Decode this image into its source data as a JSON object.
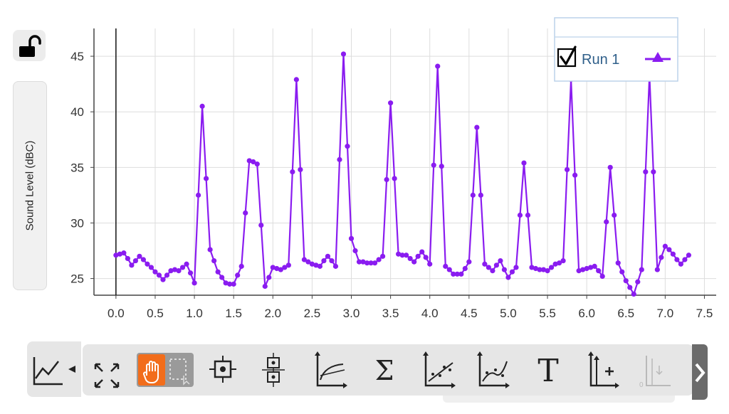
{
  "left_panel": {
    "lock_icon": "unlock-icon",
    "y_axis_label": "Sound Level (dBC)"
  },
  "legend": {
    "header": "",
    "run_label": "Run 1",
    "checked": true,
    "marker_icon": "triangle-marker-icon",
    "series_color": "#8a1cf0"
  },
  "toolbar": {
    "graph_options_icon": "graph-options-icon",
    "expand_icon": "expand-icon",
    "pan_icon": "hand-pan-icon",
    "select_icon": "selection-icon",
    "examine_icon": "examine-crosshair-icon",
    "interpolate_icon": "interpolate-icon",
    "tangent_icon": "tangent-icon",
    "statistics_label": "Σ",
    "linear_fit_icon": "linear-fit-icon",
    "curve_fit_icon": "curve-fit-icon",
    "annotation_label": "T",
    "add_axis_icon": "add-axis-icon",
    "disabled_axis_icon": "axis-zero-icon",
    "next_icon": "chevron-right-icon",
    "pan_active_color": "#f26d1b"
  },
  "chart_data": {
    "type": "line",
    "title": "",
    "xlabel": "",
    "ylabel": "Sound Level (dBC)",
    "xlim": [
      -0.28,
      7.65
    ],
    "ylim": [
      23.5,
      47.5
    ],
    "xticks": [
      "0.0",
      "0.5",
      "1.0",
      "1.5",
      "2.0",
      "2.5",
      "3.0",
      "3.5",
      "4.0",
      "4.5",
      "5.0",
      "5.5",
      "6.0",
      "6.5",
      "7.0",
      "7.5"
    ],
    "yticks": [
      "25",
      "30",
      "35",
      "40",
      "45"
    ],
    "grid": true,
    "legend_position": "top-right",
    "series": [
      {
        "name": "Run 1",
        "color": "#8a1cf0",
        "x": [
          0.0,
          0.05,
          0.1,
          0.15,
          0.2,
          0.25,
          0.3,
          0.35,
          0.4,
          0.45,
          0.5,
          0.55,
          0.6,
          0.65,
          0.7,
          0.75,
          0.8,
          0.85,
          0.9,
          0.95,
          1.0,
          1.05,
          1.1,
          1.15,
          1.2,
          1.25,
          1.3,
          1.35,
          1.4,
          1.45,
          1.5,
          1.55,
          1.6,
          1.65,
          1.7,
          1.75,
          1.8,
          1.85,
          1.9,
          1.95,
          2.0,
          2.05,
          2.1,
          2.15,
          2.2,
          2.25,
          2.3,
          2.35,
          2.4,
          2.45,
          2.5,
          2.55,
          2.6,
          2.65,
          2.7,
          2.75,
          2.8,
          2.85,
          2.9,
          2.95,
          3.0,
          3.05,
          3.1,
          3.15,
          3.2,
          3.25,
          3.3,
          3.35,
          3.4,
          3.45,
          3.5,
          3.55,
          3.6,
          3.65,
          3.7,
          3.75,
          3.8,
          3.85,
          3.9,
          3.95,
          4.0,
          4.05,
          4.1,
          4.15,
          4.2,
          4.25,
          4.3,
          4.35,
          4.4,
          4.45,
          4.5,
          4.55,
          4.6,
          4.65,
          4.7,
          4.75,
          4.8,
          4.85,
          4.9,
          4.95,
          5.0,
          5.05,
          5.1,
          5.15,
          5.2,
          5.25,
          5.3,
          5.35,
          5.4,
          5.45,
          5.5,
          5.55,
          5.6,
          5.65,
          5.7,
          5.75,
          5.8,
          5.85,
          5.9,
          5.95,
          6.0,
          6.05,
          6.1,
          6.15,
          6.2,
          6.25,
          6.3,
          6.35,
          6.4,
          6.45,
          6.5,
          6.55,
          6.6,
          6.65,
          6.7,
          6.75,
          6.8,
          6.85,
          6.9,
          6.95,
          7.0,
          7.05,
          7.1,
          7.15,
          7.2,
          7.25,
          7.3
        ],
        "y": [
          27.1,
          27.2,
          27.3,
          26.8,
          26.2,
          26.6,
          27.0,
          26.7,
          26.3,
          26.0,
          25.6,
          25.3,
          24.9,
          25.3,
          25.7,
          25.8,
          25.7,
          26.0,
          26.3,
          25.5,
          24.6,
          32.5,
          40.5,
          34.0,
          27.6,
          26.6,
          25.6,
          25.1,
          24.6,
          24.5,
          24.5,
          25.3,
          26.1,
          30.9,
          35.6,
          35.5,
          35.3,
          29.8,
          24.3,
          25.1,
          26.0,
          25.9,
          25.8,
          26.0,
          26.2,
          34.6,
          42.9,
          34.8,
          26.7,
          26.5,
          26.3,
          26.2,
          26.1,
          26.6,
          27.0,
          26.6,
          26.1,
          35.7,
          45.2,
          36.9,
          28.6,
          27.5,
          26.5,
          26.5,
          26.4,
          26.4,
          26.4,
          26.7,
          27.0,
          33.9,
          40.8,
          34.0,
          27.2,
          27.1,
          27.1,
          26.8,
          26.5,
          27.0,
          27.4,
          26.9,
          26.3,
          35.2,
          44.1,
          35.1,
          26.1,
          25.8,
          25.4,
          25.4,
          25.4,
          25.9,
          26.5,
          32.5,
          38.6,
          32.5,
          26.3,
          26.0,
          25.7,
          26.2,
          26.6,
          25.8,
          25.1,
          25.6,
          26.0,
          30.7,
          35.4,
          30.7,
          26.0,
          25.9,
          25.8,
          25.8,
          25.7,
          26.0,
          26.3,
          26.4,
          26.6,
          34.8,
          42.9,
          34.3,
          25.7,
          25.8,
          25.9,
          26.0,
          26.1,
          25.7,
          25.2,
          30.1,
          35.0,
          30.7,
          26.4,
          25.6,
          24.8,
          24.2,
          23.6,
          24.7,
          25.8,
          34.6,
          43.3,
          34.6,
          25.8,
          26.9,
          27.9,
          27.6,
          27.2,
          26.7,
          26.3,
          26.7,
          27.1
        ]
      }
    ]
  }
}
